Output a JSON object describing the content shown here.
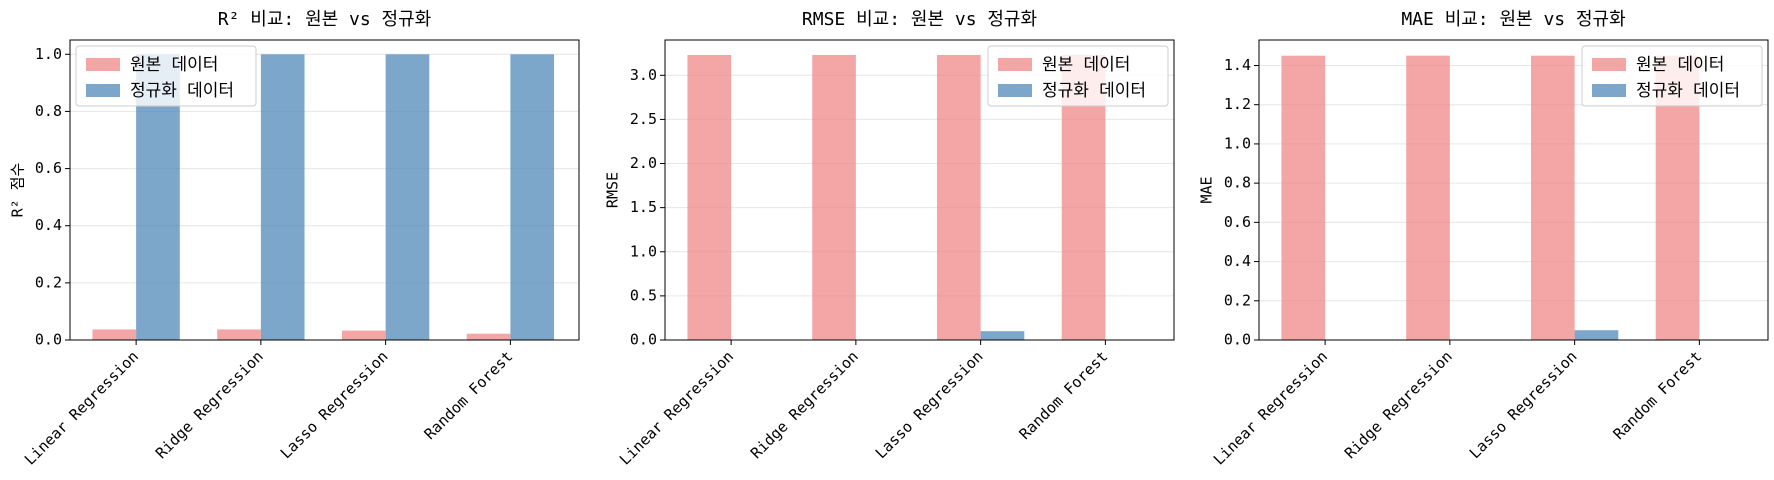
{
  "chart_data": [
    {
      "type": "bar",
      "title": "R² 비교: 원본 vs 정규화",
      "ylabel": "R² 점수",
      "categories": [
        "Linear Regression",
        "Ridge Regression",
        "Lasso Regression",
        "Random Forest"
      ],
      "series": [
        {
          "name": "원본 데이터",
          "color": "#f08080",
          "values": [
            0.037,
            0.037,
            0.033,
            0.022
          ]
        },
        {
          "name": "정규화 데이터",
          "color": "#4682b4",
          "values": [
            1.0,
            1.0,
            1.0,
            1.0
          ]
        }
      ],
      "ylim": [
        0,
        1.05
      ],
      "yticks": [
        {
          "value": 0,
          "label": "0.0"
        },
        0.2,
        0.4,
        0.6,
        0.8,
        {
          "value": 1,
          "label": "1.0"
        }
      ],
      "grid": true,
      "legend": "upper left"
    },
    {
      "type": "bar",
      "title": "RMSE 비교: 원본 vs 정규화",
      "ylabel": "RMSE",
      "categories": [
        "Linear Regression",
        "Ridge Regression",
        "Lasso Regression",
        "Random Forest"
      ],
      "series": [
        {
          "name": "원본 데이터",
          "color": "#f08080",
          "values": [
            3.23,
            3.23,
            3.23,
            3.23
          ]
        },
        {
          "name": "정규화 데이터",
          "color": "#4682b4",
          "values": [
            0.0,
            0.0,
            0.1,
            0.0
          ]
        }
      ],
      "ylim": [
        0,
        3.4
      ],
      "yticks": [
        {
          "value": 0,
          "label": "0.0"
        },
        0.5,
        {
          "value": 1,
          "label": "1.0"
        },
        1.5,
        {
          "value": 2,
          "label": "2.0"
        },
        2.5,
        {
          "value": 3,
          "label": "3.0"
        }
      ],
      "grid": true,
      "legend": "upper right"
    },
    {
      "type": "bar",
      "title": "MAE 비교: 원본 vs 정규화",
      "ylabel": "MAE",
      "categories": [
        "Linear Regression",
        "Ridge Regression",
        "Lasso Regression",
        "Random Forest"
      ],
      "series": [
        {
          "name": "원본 데이터",
          "color": "#f08080",
          "values": [
            1.45,
            1.45,
            1.45,
            1.45
          ]
        },
        {
          "name": "정규화 데이터",
          "color": "#4682b4",
          "values": [
            0.0,
            0.0,
            0.05,
            0.0
          ]
        }
      ],
      "ylim": [
        0,
        1.53
      ],
      "yticks": [
        {
          "value": 0,
          "label": "0.0"
        },
        0.2,
        0.4,
        0.6,
        0.8,
        {
          "value": 1,
          "label": "1.0"
        },
        1.2,
        1.4
      ],
      "grid": true,
      "legend": "upper right"
    }
  ]
}
